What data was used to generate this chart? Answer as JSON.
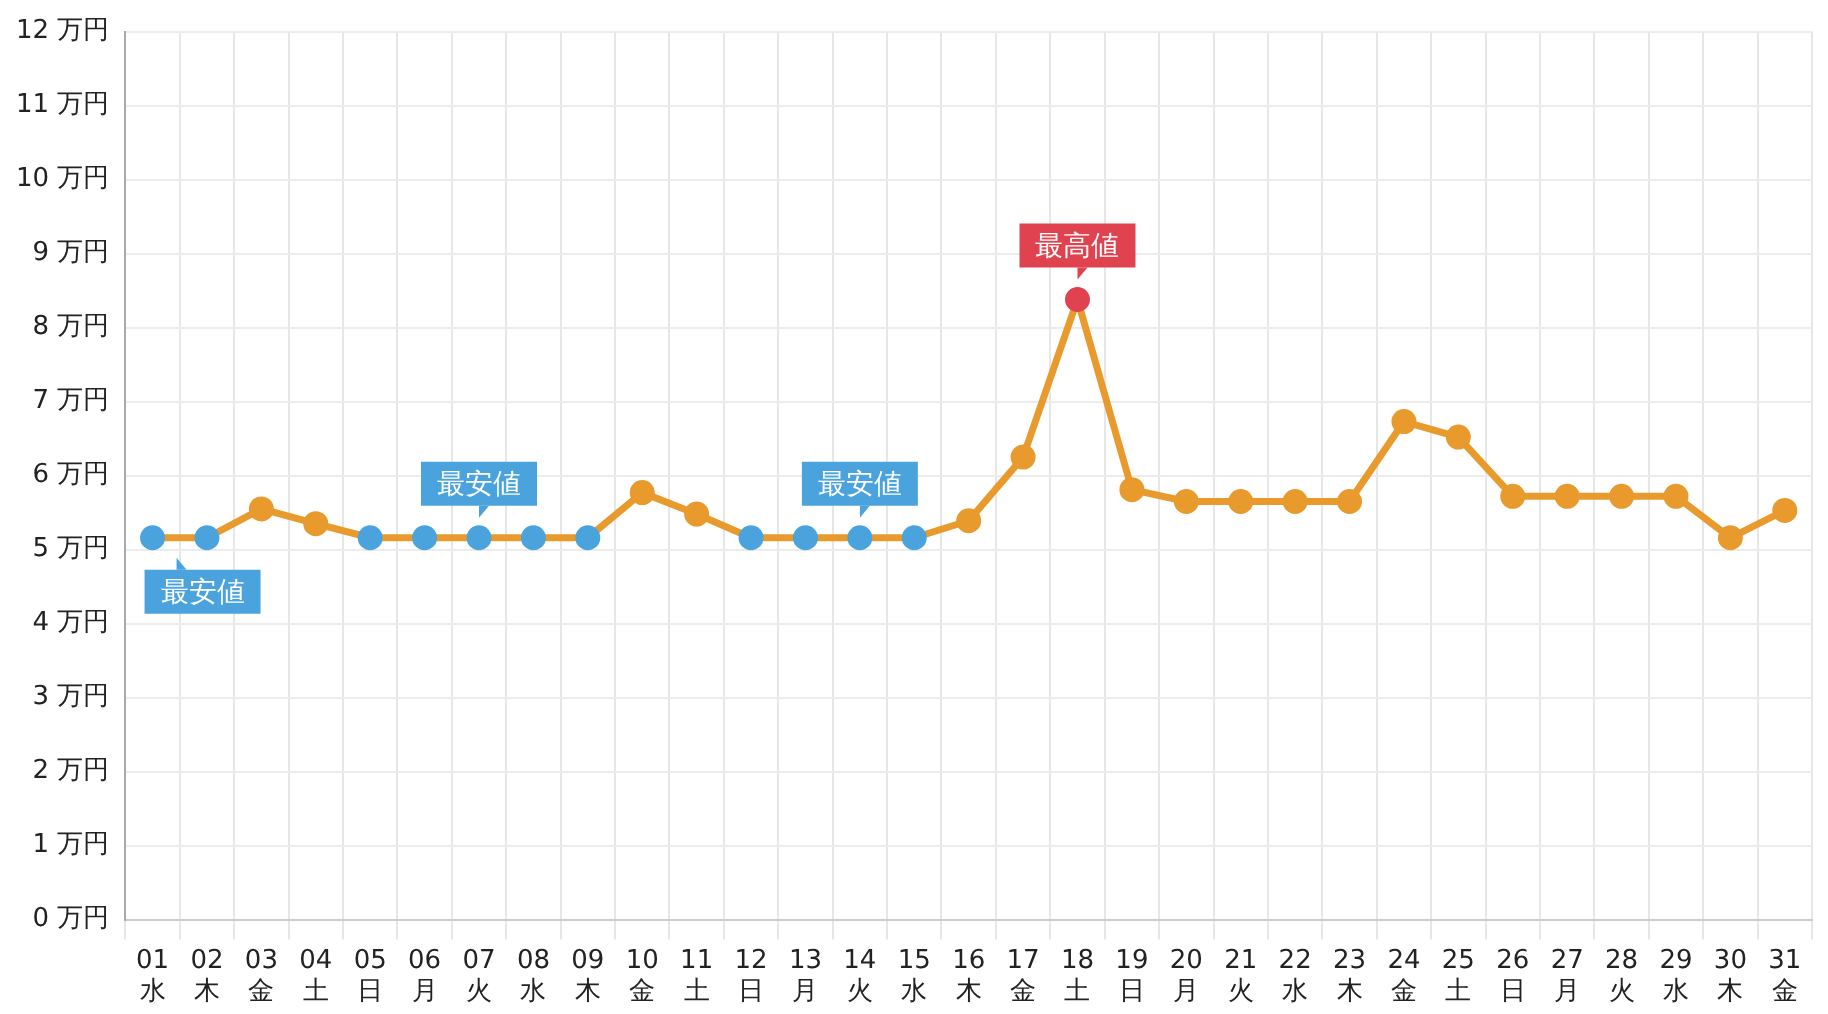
{
  "chart_data": {
    "type": "line",
    "categories": [
      "01 水",
      "02 木",
      "03 金",
      "04 土",
      "05 日",
      "06 月",
      "07 火",
      "08 水",
      "09 木",
      "10 金",
      "11 土",
      "12 日",
      "13 月",
      "14 火",
      "15 水",
      "16 木",
      "17 金",
      "18 土",
      "19 日",
      "20 月",
      "21 火",
      "22 水",
      "23 木",
      "24 金",
      "25 土",
      "26 日",
      "27 月",
      "28 火",
      "29 水",
      "30 木",
      "31 金"
    ],
    "series": [
      {
        "color": "#e89a2c",
        "values": [
          5.16,
          5.16,
          5.55,
          5.35,
          5.16,
          5.16,
          5.16,
          5.16,
          5.16,
          5.77,
          5.48,
          5.16,
          5.16,
          5.16,
          5.16,
          5.39,
          6.25,
          8.38,
          5.81,
          5.65,
          5.65,
          5.65,
          5.65,
          6.73,
          6.52,
          5.72,
          5.72,
          5.72,
          5.72,
          5.16,
          5.53
        ],
        "colors": [
          "#4aa3dc",
          "#4aa3dc",
          "#e89a2c",
          "#e89a2c",
          "#4aa3dc",
          "#4aa3dc",
          "#4aa3dc",
          "#4aa3dc",
          "#4aa3dc",
          "#e89a2c",
          "#e89a2c",
          "#4aa3dc",
          "#4aa3dc",
          "#4aa3dc",
          "#4aa3dc",
          "#e89a2c",
          "#e89a2c",
          "#e0434f",
          "#e89a2c",
          "#e89a2c",
          "#e89a2c",
          "#e89a2c",
          "#e89a2c",
          "#e89a2c",
          "#e89a2c",
          "#e89a2c",
          "#e89a2c",
          "#e89a2c",
          "#e89a2c",
          "#e89a2c",
          "#e89a2c"
        ]
      }
    ],
    "ylim": [
      0,
      12
    ],
    "yticks": [
      {
        "value": 0,
        "label": "0 万円"
      },
      {
        "value": 1,
        "label": "1 万円"
      },
      {
        "value": 2,
        "label": "2 万円"
      },
      {
        "value": 3,
        "label": "3 万円"
      },
      {
        "value": 4,
        "label": "4 万円"
      },
      {
        "value": 5,
        "label": "5 万円"
      },
      {
        "value": 6,
        "label": "6 万円"
      },
      {
        "value": 7,
        "label": "7 万円"
      },
      {
        "value": 8,
        "label": "8 万円"
      },
      {
        "value": 9,
        "label": "9 万円"
      },
      {
        "value": 10,
        "label": "10 万円"
      },
      {
        "value": 11,
        "label": "11 万円"
      },
      {
        "value": 12,
        "label": "12 万円"
      }
    ],
    "annotations": [
      {
        "text": "最安値",
        "x": "01 水",
        "y": 5.16
      },
      {
        "text": "最安値",
        "x": "07 火",
        "y": 5.16
      },
      {
        "text": "最安値",
        "x": "14 火",
        "y": 5.16
      },
      {
        "text": "最高値",
        "x": "18 土",
        "y": 8.38
      }
    ],
    "grid": true,
    "legend": false,
    "marker": "circle",
    "line_style": "solid"
  }
}
